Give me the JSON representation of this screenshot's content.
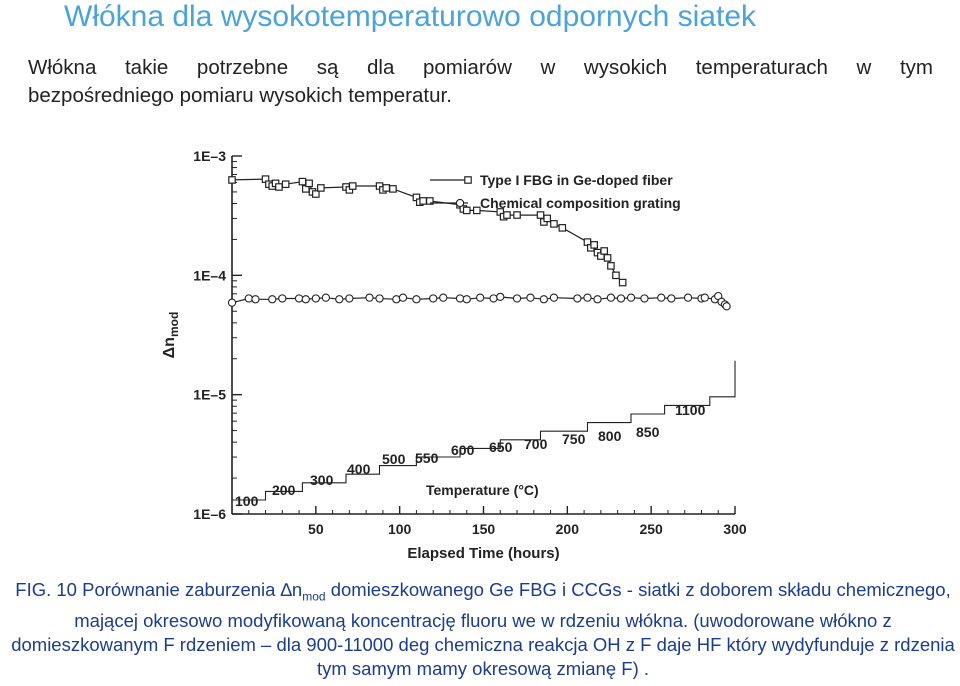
{
  "title": "Włókna dla wysokotemperaturowo odpornych siatek",
  "intro": {
    "line1": "Włókna takie potrzebne są dla pomiarów w wysokich temperaturach w tym",
    "line2": "bezpośredniego pomiaru wysokich temperatur."
  },
  "chart_data": {
    "type": "scatter",
    "xlabel": "Elapsed Time (hours)",
    "ylabel": "Δn",
    "ylabel_sub": "mod",
    "xlim": [
      0,
      300
    ],
    "ylim": [
      1e-06,
      0.001
    ],
    "yscale": "log",
    "x_ticks": [
      "50",
      "100",
      "150",
      "200",
      "250",
      "300"
    ],
    "y_ticks": [
      "1E–3",
      "1E–4",
      "1E–5",
      "1E–6"
    ],
    "legend_position": "top-right",
    "series": [
      {
        "name": "Type I FBG in Ge-doped fiber",
        "marker": "square",
        "points": [
          [
            0,
            0.00063
          ],
          [
            20,
            0.00064
          ],
          [
            22,
            0.00058
          ],
          [
            24,
            0.00056
          ],
          [
            26,
            0.00059
          ],
          [
            28,
            0.00055
          ],
          [
            32,
            0.00058
          ],
          [
            42,
            0.00061
          ],
          [
            44,
            0.00053
          ],
          [
            46,
            0.00059
          ],
          [
            48,
            0.0005
          ],
          [
            50,
            0.00048
          ],
          [
            53,
            0.00054
          ],
          [
            68,
            0.00055
          ],
          [
            70,
            0.00052
          ],
          [
            72,
            0.00056
          ],
          [
            88,
            0.00056
          ],
          [
            90,
            0.00052
          ],
          [
            92,
            0.00054
          ],
          [
            96,
            0.00053
          ],
          [
            110,
            0.00045
          ],
          [
            112,
            0.00041
          ],
          [
            114,
            0.00042
          ],
          [
            118,
            0.00042
          ],
          [
            136,
            0.00039
          ],
          [
            138,
            0.00036
          ],
          [
            140,
            0.00035
          ],
          [
            146,
            0.00035
          ],
          [
            160,
            0.00034
          ],
          [
            162,
            0.00031
          ],
          [
            164,
            0.00032
          ],
          [
            170,
            0.00032
          ],
          [
            184,
            0.00032
          ],
          [
            186,
            0.00028
          ],
          [
            188,
            0.0003
          ],
          [
            192,
            0.00027
          ],
          [
            197,
            0.00025
          ],
          [
            212,
            0.00019
          ],
          [
            214,
            0.00017
          ],
          [
            216,
            0.00018
          ],
          [
            218,
            0.000155
          ],
          [
            220,
            0.000145
          ],
          [
            222,
            0.00016
          ],
          [
            224,
            0.00014
          ],
          [
            226,
            0.00012
          ],
          [
            229,
            0.0001
          ],
          [
            233,
            8.7e-05
          ]
        ]
      },
      {
        "name": "Chemical composition grating",
        "marker": "circle",
        "points": [
          [
            0,
            5.9e-05
          ],
          [
            10,
            6.4e-05
          ],
          [
            14,
            6.3e-05
          ],
          [
            24,
            6.3e-05
          ],
          [
            30,
            6.4e-05
          ],
          [
            40,
            6.4e-05
          ],
          [
            44,
            6.3e-05
          ],
          [
            50,
            6.4e-05
          ],
          [
            56,
            6.5e-05
          ],
          [
            64,
            6.3e-05
          ],
          [
            70,
            6.4e-05
          ],
          [
            82,
            6.5e-05
          ],
          [
            88,
            6.4e-05
          ],
          [
            98,
            6.3e-05
          ],
          [
            102,
            6.5e-05
          ],
          [
            110,
            6.3e-05
          ],
          [
            120,
            6.4e-05
          ],
          [
            126,
            6.5e-05
          ],
          [
            136,
            6.4e-05
          ],
          [
            140,
            6.3e-05
          ],
          [
            148,
            6.5e-05
          ],
          [
            156,
            6.4e-05
          ],
          [
            160,
            6.6e-05
          ],
          [
            170,
            6.4e-05
          ],
          [
            178,
            6.5e-05
          ],
          [
            186,
            6.3e-05
          ],
          [
            192,
            6.5e-05
          ],
          [
            206,
            6.4e-05
          ],
          [
            212,
            6.5e-05
          ],
          [
            218,
            6.3e-05
          ],
          [
            226,
            6.5e-05
          ],
          [
            232,
            6.4e-05
          ],
          [
            238,
            6.5e-05
          ],
          [
            246,
            6.4e-05
          ],
          [
            256,
            6.5e-05
          ],
          [
            262,
            6.4e-05
          ],
          [
            272,
            6.5e-05
          ],
          [
            280,
            6.4e-05
          ],
          [
            282,
            6.5e-05
          ],
          [
            288,
            6.3e-05
          ],
          [
            290,
            6.7e-05
          ],
          [
            292,
            6e-05
          ],
          [
            294,
            5.7e-05
          ],
          [
            295,
            5.5e-05
          ]
        ]
      }
    ],
    "temperature_label": "Temperature (°C)",
    "temperature_steps": [
      {
        "label": "100",
        "x_start": 0,
        "x_end": 20
      },
      {
        "label": "200",
        "x_start": 20,
        "x_end": 42
      },
      {
        "label": "300",
        "x_start": 42,
        "x_end": 68
      },
      {
        "label": "400",
        "x_start": 68,
        "x_end": 88
      },
      {
        "label": "500",
        "x_start": 88,
        "x_end": 110
      },
      {
        "label": "550",
        "x_start": 110,
        "x_end": 136
      },
      {
        "label": "600",
        "x_start": 136,
        "x_end": 160
      },
      {
        "label": "650",
        "x_start": 160,
        "x_end": 184
      },
      {
        "label": "700",
        "x_start": 184,
        "x_end": 212
      },
      {
        "label": "750",
        "x_start": 212,
        "x_end": 238
      },
      {
        "label": "800",
        "x_start": 238,
        "x_end": 258
      },
      {
        "label": "850",
        "x_start": 258,
        "x_end": 285
      },
      {
        "label": "1100",
        "x_start": 285,
        "x_end": 300
      }
    ]
  },
  "caption": {
    "fig_label": "FIG. 10",
    "part1": " Porównanie zaburzenia ",
    "delta_n": "∆n",
    "sub": "mod",
    "part2": " domieszkowanego Ge FBG i CCGs - siatki z doborem składu chemicznego, mającej okresowo modyfikowaną koncentrację fluoru we w rdzeniu włókna. (uwodorowane włókno z domieszkowanym F rdzeniem – dla 900-11000 deg chemiczna reakcja OH z F daje HF który wydyfunduje z rdzenia tym samym mamy okresową zmianę F) ."
  },
  "colors": {
    "title": "#4aa3d9",
    "caption": "#1b3d8f",
    "plot": "#222222"
  }
}
